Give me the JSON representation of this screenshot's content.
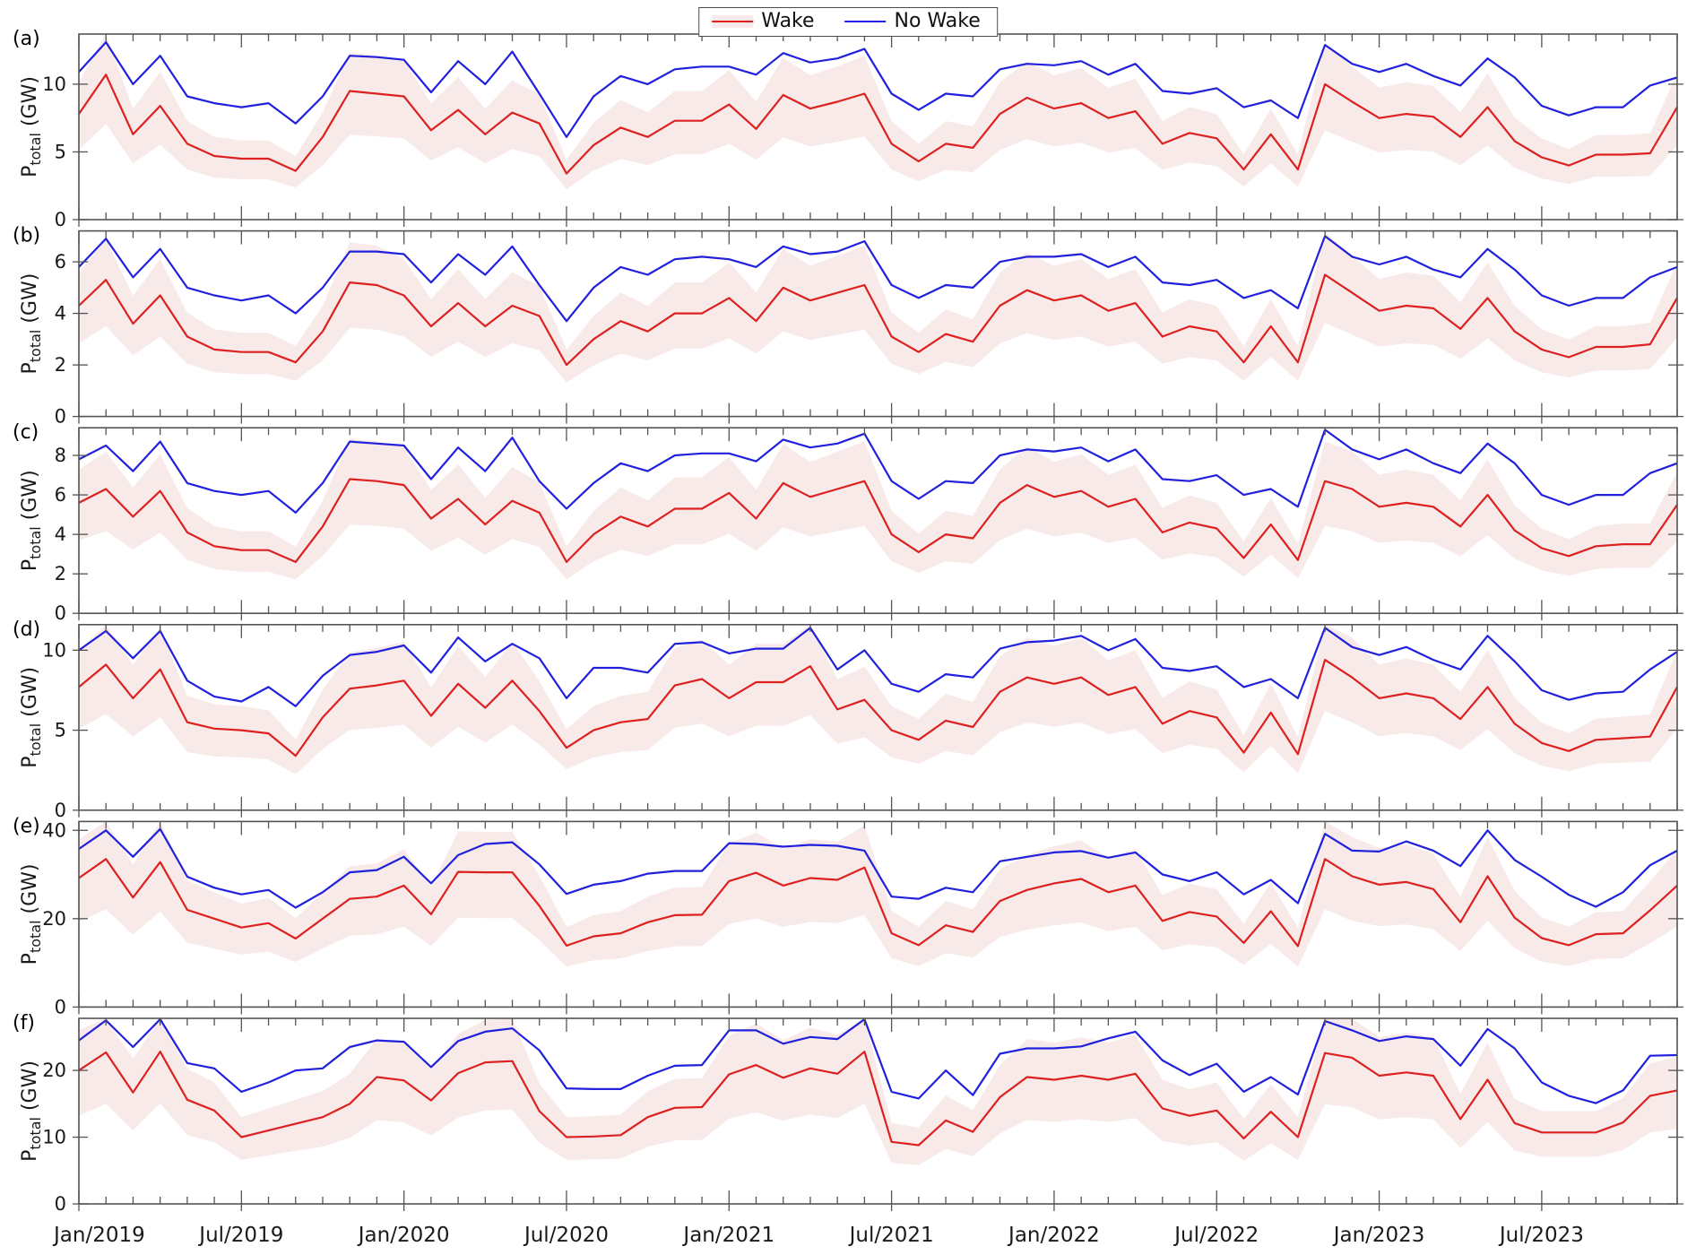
{
  "legend": {
    "wake_label": "Wake",
    "no_wake_label": "No Wake"
  },
  "colors": {
    "wake": "#dd2020",
    "no_wake": "#2020dd",
    "band": "#f8eae8",
    "axis": "#545454",
    "text": "#1a1a1a"
  },
  "chart_data": {
    "type": "line",
    "n_months": 60,
    "x_start": "Jan/2019",
    "x_end": "Dec/2023",
    "x_tick_labels": [
      "Jan/2019",
      "Jul/2019",
      "Jan/2020",
      "Jul/2020",
      "Jan/2021",
      "Jul/2021",
      "Jan/2022",
      "Jul/2022",
      "Jan/2023",
      "Jul/2023"
    ],
    "x_major_every": 6,
    "grid": false,
    "legend_position": "top-center",
    "band_meaning": "uncertainty band around Wake series",
    "band_lower_factor": 0.66,
    "band_upper_factor": 1.3,
    "ylabel_parts": {
      "main": "P",
      "sub": "total",
      "unit": " (GW)"
    },
    "panels": [
      {
        "label": "(a)",
        "ylim": [
          0,
          13.7
        ],
        "yticks": [
          0,
          5,
          10
        ],
        "series": [
          {
            "name": "Wake",
            "values": [
              7.8,
              10.7,
              6.3,
              8.4,
              5.6,
              4.7,
              4.5,
              4.5,
              3.6,
              6.1,
              9.5,
              9.3,
              9.1,
              6.6,
              8.1,
              6.3,
              7.9,
              7.1,
              3.4,
              5.5,
              6.8,
              6.1,
              7.3,
              7.3,
              8.5,
              6.7,
              9.2,
              8.2,
              8.7,
              9.3,
              5.6,
              4.3,
              5.6,
              5.3,
              7.8,
              9.0,
              8.2,
              8.6,
              7.5,
              8.0,
              5.6,
              6.4,
              6.0,
              3.7,
              6.3,
              3.7,
              10.0,
              8.7,
              7.5,
              7.8,
              7.6,
              6.1,
              8.3,
              5.8,
              4.6,
              4.0,
              4.8,
              4.8,
              4.9,
              8.3
            ]
          },
          {
            "name": "No Wake",
            "values": [
              10.9,
              13.1,
              10.0,
              12.1,
              9.1,
              8.6,
              8.3,
              8.6,
              7.1,
              9.1,
              12.1,
              12.0,
              11.8,
              9.4,
              11.7,
              10.0,
              12.4,
              9.3,
              6.1,
              9.1,
              10.6,
              10.0,
              11.1,
              11.3,
              11.3,
              10.7,
              12.3,
              11.6,
              11.9,
              12.6,
              9.3,
              8.1,
              9.3,
              9.1,
              11.1,
              11.5,
              11.4,
              11.7,
              10.7,
              11.5,
              9.5,
              9.3,
              9.7,
              8.3,
              8.8,
              7.5,
              12.9,
              11.5,
              10.9,
              11.5,
              10.6,
              9.9,
              11.9,
              10.5,
              8.4,
              7.7,
              8.3,
              8.3,
              9.9,
              10.5
            ]
          }
        ]
      },
      {
        "label": "(b)",
        "ylim": [
          0,
          7.2
        ],
        "yticks": [
          0,
          2,
          4,
          6
        ],
        "series": [
          {
            "name": "Wake",
            "values": [
              4.3,
              5.3,
              3.6,
              4.7,
              3.1,
              2.6,
              2.5,
              2.5,
              2.1,
              3.3,
              5.2,
              5.1,
              4.7,
              3.5,
              4.4,
              3.5,
              4.3,
              3.9,
              2.0,
              3.0,
              3.7,
              3.3,
              4.0,
              4.0,
              4.6,
              3.7,
              5.0,
              4.5,
              4.8,
              5.1,
              3.1,
              2.5,
              3.2,
              2.9,
              4.3,
              4.9,
              4.5,
              4.7,
              4.1,
              4.4,
              3.1,
              3.5,
              3.3,
              2.1,
              3.5,
              2.1,
              5.5,
              4.8,
              4.1,
              4.3,
              4.2,
              3.4,
              4.6,
              3.3,
              2.6,
              2.3,
              2.7,
              2.7,
              2.8,
              4.6
            ]
          },
          {
            "name": "No Wake",
            "values": [
              5.8,
              6.9,
              5.4,
              6.5,
              5.0,
              4.7,
              4.5,
              4.7,
              4.0,
              5.0,
              6.4,
              6.4,
              6.3,
              5.2,
              6.3,
              5.5,
              6.6,
              5.1,
              3.7,
              5.0,
              5.8,
              5.5,
              6.1,
              6.2,
              6.1,
              5.8,
              6.6,
              6.3,
              6.4,
              6.8,
              5.1,
              4.6,
              5.1,
              5.0,
              6.0,
              6.2,
              6.2,
              6.3,
              5.8,
              6.2,
              5.2,
              5.1,
              5.3,
              4.6,
              4.9,
              4.2,
              7.0,
              6.2,
              5.9,
              6.2,
              5.7,
              5.4,
              6.5,
              5.7,
              4.7,
              4.3,
              4.6,
              4.6,
              5.4,
              5.8
            ]
          }
        ]
      },
      {
        "label": "(c)",
        "ylim": [
          0,
          9.4
        ],
        "yticks": [
          0,
          2,
          4,
          6,
          8
        ],
        "series": [
          {
            "name": "Wake",
            "values": [
              5.6,
              6.3,
              4.9,
              6.2,
              4.1,
              3.4,
              3.2,
              3.2,
              2.6,
              4.4,
              6.8,
              6.7,
              6.5,
              4.8,
              5.8,
              4.5,
              5.7,
              5.1,
              2.6,
              4.0,
              4.9,
              4.4,
              5.3,
              5.3,
              6.1,
              4.8,
              6.6,
              5.9,
              6.3,
              6.7,
              4.0,
              3.1,
              4.0,
              3.8,
              5.6,
              6.5,
              5.9,
              6.2,
              5.4,
              5.8,
              4.1,
              4.6,
              4.3,
              2.8,
              4.5,
              2.7,
              6.7,
              6.3,
              5.4,
              5.6,
              5.4,
              4.4,
              6.0,
              4.2,
              3.3,
              2.9,
              3.4,
              3.5,
              3.5,
              5.5
            ]
          },
          {
            "name": "No Wake",
            "values": [
              7.8,
              8.5,
              7.2,
              8.7,
              6.6,
              6.2,
              6.0,
              6.2,
              5.1,
              6.6,
              8.7,
              8.6,
              8.5,
              6.8,
              8.4,
              7.2,
              8.9,
              6.7,
              5.3,
              6.6,
              7.6,
              7.2,
              8.0,
              8.1,
              8.1,
              7.7,
              8.8,
              8.4,
              8.6,
              9.1,
              6.7,
              5.8,
              6.7,
              6.6,
              8.0,
              8.3,
              8.2,
              8.4,
              7.7,
              8.3,
              6.8,
              6.7,
              7.0,
              6.0,
              6.3,
              5.4,
              9.3,
              8.3,
              7.8,
              8.3,
              7.6,
              7.1,
              8.6,
              7.6,
              6.0,
              5.5,
              6.0,
              6.0,
              7.1,
              7.6
            ]
          }
        ]
      },
      {
        "label": "(d)",
        "ylim": [
          0,
          11.6
        ],
        "yticks": [
          0,
          5,
          10
        ],
        "series": [
          {
            "name": "Wake",
            "values": [
              7.7,
              9.1,
              7.0,
              8.8,
              5.5,
              5.1,
              5.0,
              4.8,
              3.4,
              5.8,
              7.6,
              7.8,
              8.1,
              5.9,
              7.9,
              6.4,
              8.1,
              6.2,
              3.9,
              5.0,
              5.5,
              5.7,
              7.8,
              8.2,
              7.0,
              8.0,
              8.0,
              9.0,
              6.3,
              6.9,
              5.0,
              4.4,
              5.6,
              5.2,
              7.4,
              8.3,
              7.9,
              8.3,
              7.2,
              7.7,
              5.4,
              6.2,
              5.8,
              3.6,
              6.1,
              3.5,
              9.4,
              8.3,
              7.0,
              7.3,
              7.0,
              5.7,
              7.7,
              5.4,
              4.2,
              3.7,
              4.4,
              4.5,
              4.6,
              7.7
            ]
          },
          {
            "name": "No Wake",
            "values": [
              10.0,
              11.2,
              9.5,
              11.2,
              8.1,
              7.1,
              6.8,
              7.7,
              6.5,
              8.4,
              9.7,
              9.9,
              10.3,
              8.6,
              10.8,
              9.3,
              10.4,
              9.5,
              7.0,
              8.9,
              8.9,
              8.6,
              10.4,
              10.5,
              9.8,
              10.1,
              10.1,
              11.4,
              8.8,
              10.0,
              7.9,
              7.4,
              8.5,
              8.3,
              10.1,
              10.5,
              10.6,
              10.9,
              10.0,
              10.7,
              8.9,
              8.7,
              9.0,
              7.7,
              8.2,
              7.0,
              11.4,
              10.2,
              9.7,
              10.2,
              9.4,
              8.8,
              10.9,
              9.3,
              7.5,
              6.9,
              7.3,
              7.4,
              8.8,
              9.9
            ]
          }
        ]
      },
      {
        "label": "(e)",
        "ylim": [
          0,
          42
        ],
        "yticks": [
          0,
          20,
          40
        ],
        "series": [
          {
            "name": "Wake",
            "values": [
              29.2,
              33.5,
              24.8,
              32.8,
              22.0,
              20.0,
              18.0,
              19.0,
              15.5,
              20.0,
              24.5,
              25.0,
              27.5,
              21.0,
              30.6,
              30.5,
              30.5,
              22.9,
              13.9,
              16.0,
              16.7,
              19.2,
              20.8,
              20.9,
              28.5,
              30.4,
              27.5,
              29.2,
              28.8,
              31.6,
              16.7,
              14.0,
              18.5,
              17.0,
              24.0,
              26.5,
              28.0,
              29.0,
              26.0,
              27.5,
              19.5,
              21.5,
              20.5,
              14.5,
              21.7,
              13.8,
              33.5,
              29.6,
              27.7,
              28.3,
              26.7,
              19.2,
              29.6,
              20.2,
              15.6,
              14.0,
              16.5,
              16.7,
              21.9,
              27.5
            ]
          },
          {
            "name": "No Wake",
            "values": [
              35.8,
              40.0,
              34.0,
              40.3,
              29.5,
              27.0,
              25.5,
              26.5,
              22.5,
              26.0,
              30.5,
              31.0,
              34.0,
              28.0,
              34.4,
              36.9,
              37.3,
              32.3,
              25.6,
              27.7,
              28.5,
              30.2,
              30.8,
              30.8,
              37.1,
              36.9,
              36.3,
              36.7,
              36.5,
              35.4,
              25.0,
              24.5,
              27.0,
              26.0,
              33.0,
              34.0,
              35.0,
              35.3,
              33.8,
              35.0,
              30.0,
              28.5,
              30.5,
              25.5,
              28.8,
              23.5,
              39.2,
              35.4,
              35.2,
              37.5,
              35.4,
              31.9,
              40.0,
              33.3,
              29.5,
              25.4,
              22.7,
              26.0,
              32.1,
              35.4
            ]
          }
        ]
      },
      {
        "label": "(f)",
        "ylim": [
          0,
          27.8
        ],
        "yticks": [
          0,
          10,
          20
        ],
        "series": [
          {
            "name": "Wake",
            "values": [
              20.0,
              22.7,
              16.7,
              22.8,
              15.6,
              14.0,
              10.0,
              11.0,
              12.0,
              13.0,
              15.0,
              19.0,
              18.5,
              15.5,
              19.6,
              21.2,
              21.4,
              13.9,
              10.0,
              10.1,
              10.3,
              13.0,
              14.4,
              14.5,
              19.4,
              20.8,
              18.9,
              20.3,
              19.5,
              22.8,
              9.3,
              8.8,
              12.5,
              10.8,
              16.0,
              19.0,
              18.6,
              19.2,
              18.6,
              19.5,
              14.3,
              13.2,
              14.0,
              9.8,
              13.8,
              10.0,
              22.6,
              21.9,
              19.2,
              19.7,
              19.2,
              12.7,
              18.6,
              12.1,
              10.7,
              10.7,
              10.7,
              12.2,
              16.2,
              17.0
            ]
          },
          {
            "name": "No Wake",
            "values": [
              24.5,
              27.5,
              23.5,
              28.4,
              21.1,
              20.3,
              16.8,
              18.2,
              20.0,
              20.3,
              23.5,
              24.5,
              24.3,
              20.5,
              24.4,
              25.8,
              26.3,
              23.0,
              17.3,
              17.2,
              17.2,
              19.2,
              20.7,
              20.8,
              26.0,
              26.0,
              24.0,
              25.0,
              24.7,
              27.9,
              16.8,
              15.8,
              20.0,
              16.3,
              22.5,
              23.3,
              23.3,
              23.6,
              24.8,
              25.8,
              21.5,
              19.3,
              21.0,
              16.8,
              19.0,
              16.4,
              27.4,
              26.0,
              24.4,
              25.1,
              24.7,
              20.7,
              26.2,
              23.3,
              18.2,
              16.2,
              15.1,
              17.0,
              22.2,
              22.3
            ]
          }
        ]
      }
    ]
  }
}
